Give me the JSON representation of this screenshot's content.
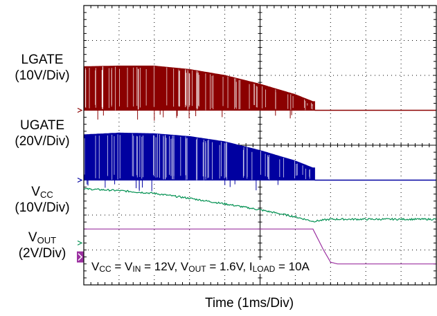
{
  "chart_data": {
    "type": "line",
    "xlabel": "Time (1ms/Div)",
    "x_unit": "ms",
    "xlim": [
      0,
      10
    ],
    "grid": true,
    "divisions": {
      "x": 10,
      "y": 8
    },
    "conditions": "VCC = VIN = 12V, VOUT = 1.6V, ILOAD = 10A",
    "conditions_parts": {
      "vcc_v": "V",
      "vcc_sub": "CC",
      "eq1": " = V",
      "vin_sub": "IN",
      "eq2": " = 12V, V",
      "vout_sub": "OUT",
      "eq3": " = 1.6V, I",
      "iload_sub": "LOAD",
      "eq4": " = 10A"
    },
    "series": [
      {
        "name": "LGATE",
        "scale": "(10V/Div)",
        "name_main": "LGATE",
        "name_sub": "",
        "unit": "V",
        "volts_per_div": 10,
        "color": "#8b0000",
        "display": "switching",
        "zero_div": 5.0,
        "envelope": {
          "x": [
            0,
            1,
            2,
            3,
            4,
            5,
            6,
            6.5
          ],
          "y_div": [
            1.25,
            1.27,
            1.27,
            1.17,
            1.0,
            0.75,
            0.45,
            0.25
          ]
        },
        "off_time": 6.55,
        "off_level_div": 0.0
      },
      {
        "name": "UGATE",
        "scale": "(20V/Div)",
        "name_main": "UGATE",
        "name_sub": "",
        "unit": "V",
        "volts_per_div": 20,
        "color": "#0000a0",
        "display": "switching",
        "zero_div": 3.0,
        "envelope": {
          "x": [
            0,
            1,
            2,
            3,
            4,
            5,
            6,
            6.5
          ],
          "y_div": [
            1.3,
            1.35,
            1.33,
            1.25,
            1.1,
            0.85,
            0.55,
            0.35
          ]
        },
        "off_time": 6.55,
        "off_level_div": 0.0
      },
      {
        "name": "VCC",
        "scale": "(10V/Div)",
        "name_main": "V",
        "name_sub": "CC",
        "unit": "V",
        "volts_per_div": 10,
        "color": "#009050",
        "display": "line",
        "zero_div": 1.2,
        "x": [
          0,
          1,
          2,
          3,
          4,
          5,
          6,
          6.5,
          7,
          8,
          9,
          10
        ],
        "y_div": [
          1.55,
          1.5,
          1.42,
          1.28,
          1.12,
          0.95,
          0.75,
          0.62,
          0.68,
          0.68,
          0.68,
          0.68
        ]
      },
      {
        "name": "VOUT",
        "scale": "(2V/Div)",
        "name_main": "V",
        "name_sub": "OUT",
        "unit": "V",
        "volts_per_div": 2,
        "color": "#9b30a0",
        "display": "line",
        "zero_div": 0.8,
        "x": [
          0,
          1,
          2,
          3,
          4,
          5,
          6,
          6.5,
          6.6,
          6.8,
          7.0,
          7.2,
          8,
          9,
          10
        ],
        "y_div": [
          0.8,
          0.8,
          0.8,
          0.8,
          0.8,
          0.8,
          0.8,
          0.8,
          0.6,
          0.2,
          -0.15,
          -0.2,
          -0.2,
          -0.2,
          -0.2
        ]
      }
    ]
  }
}
